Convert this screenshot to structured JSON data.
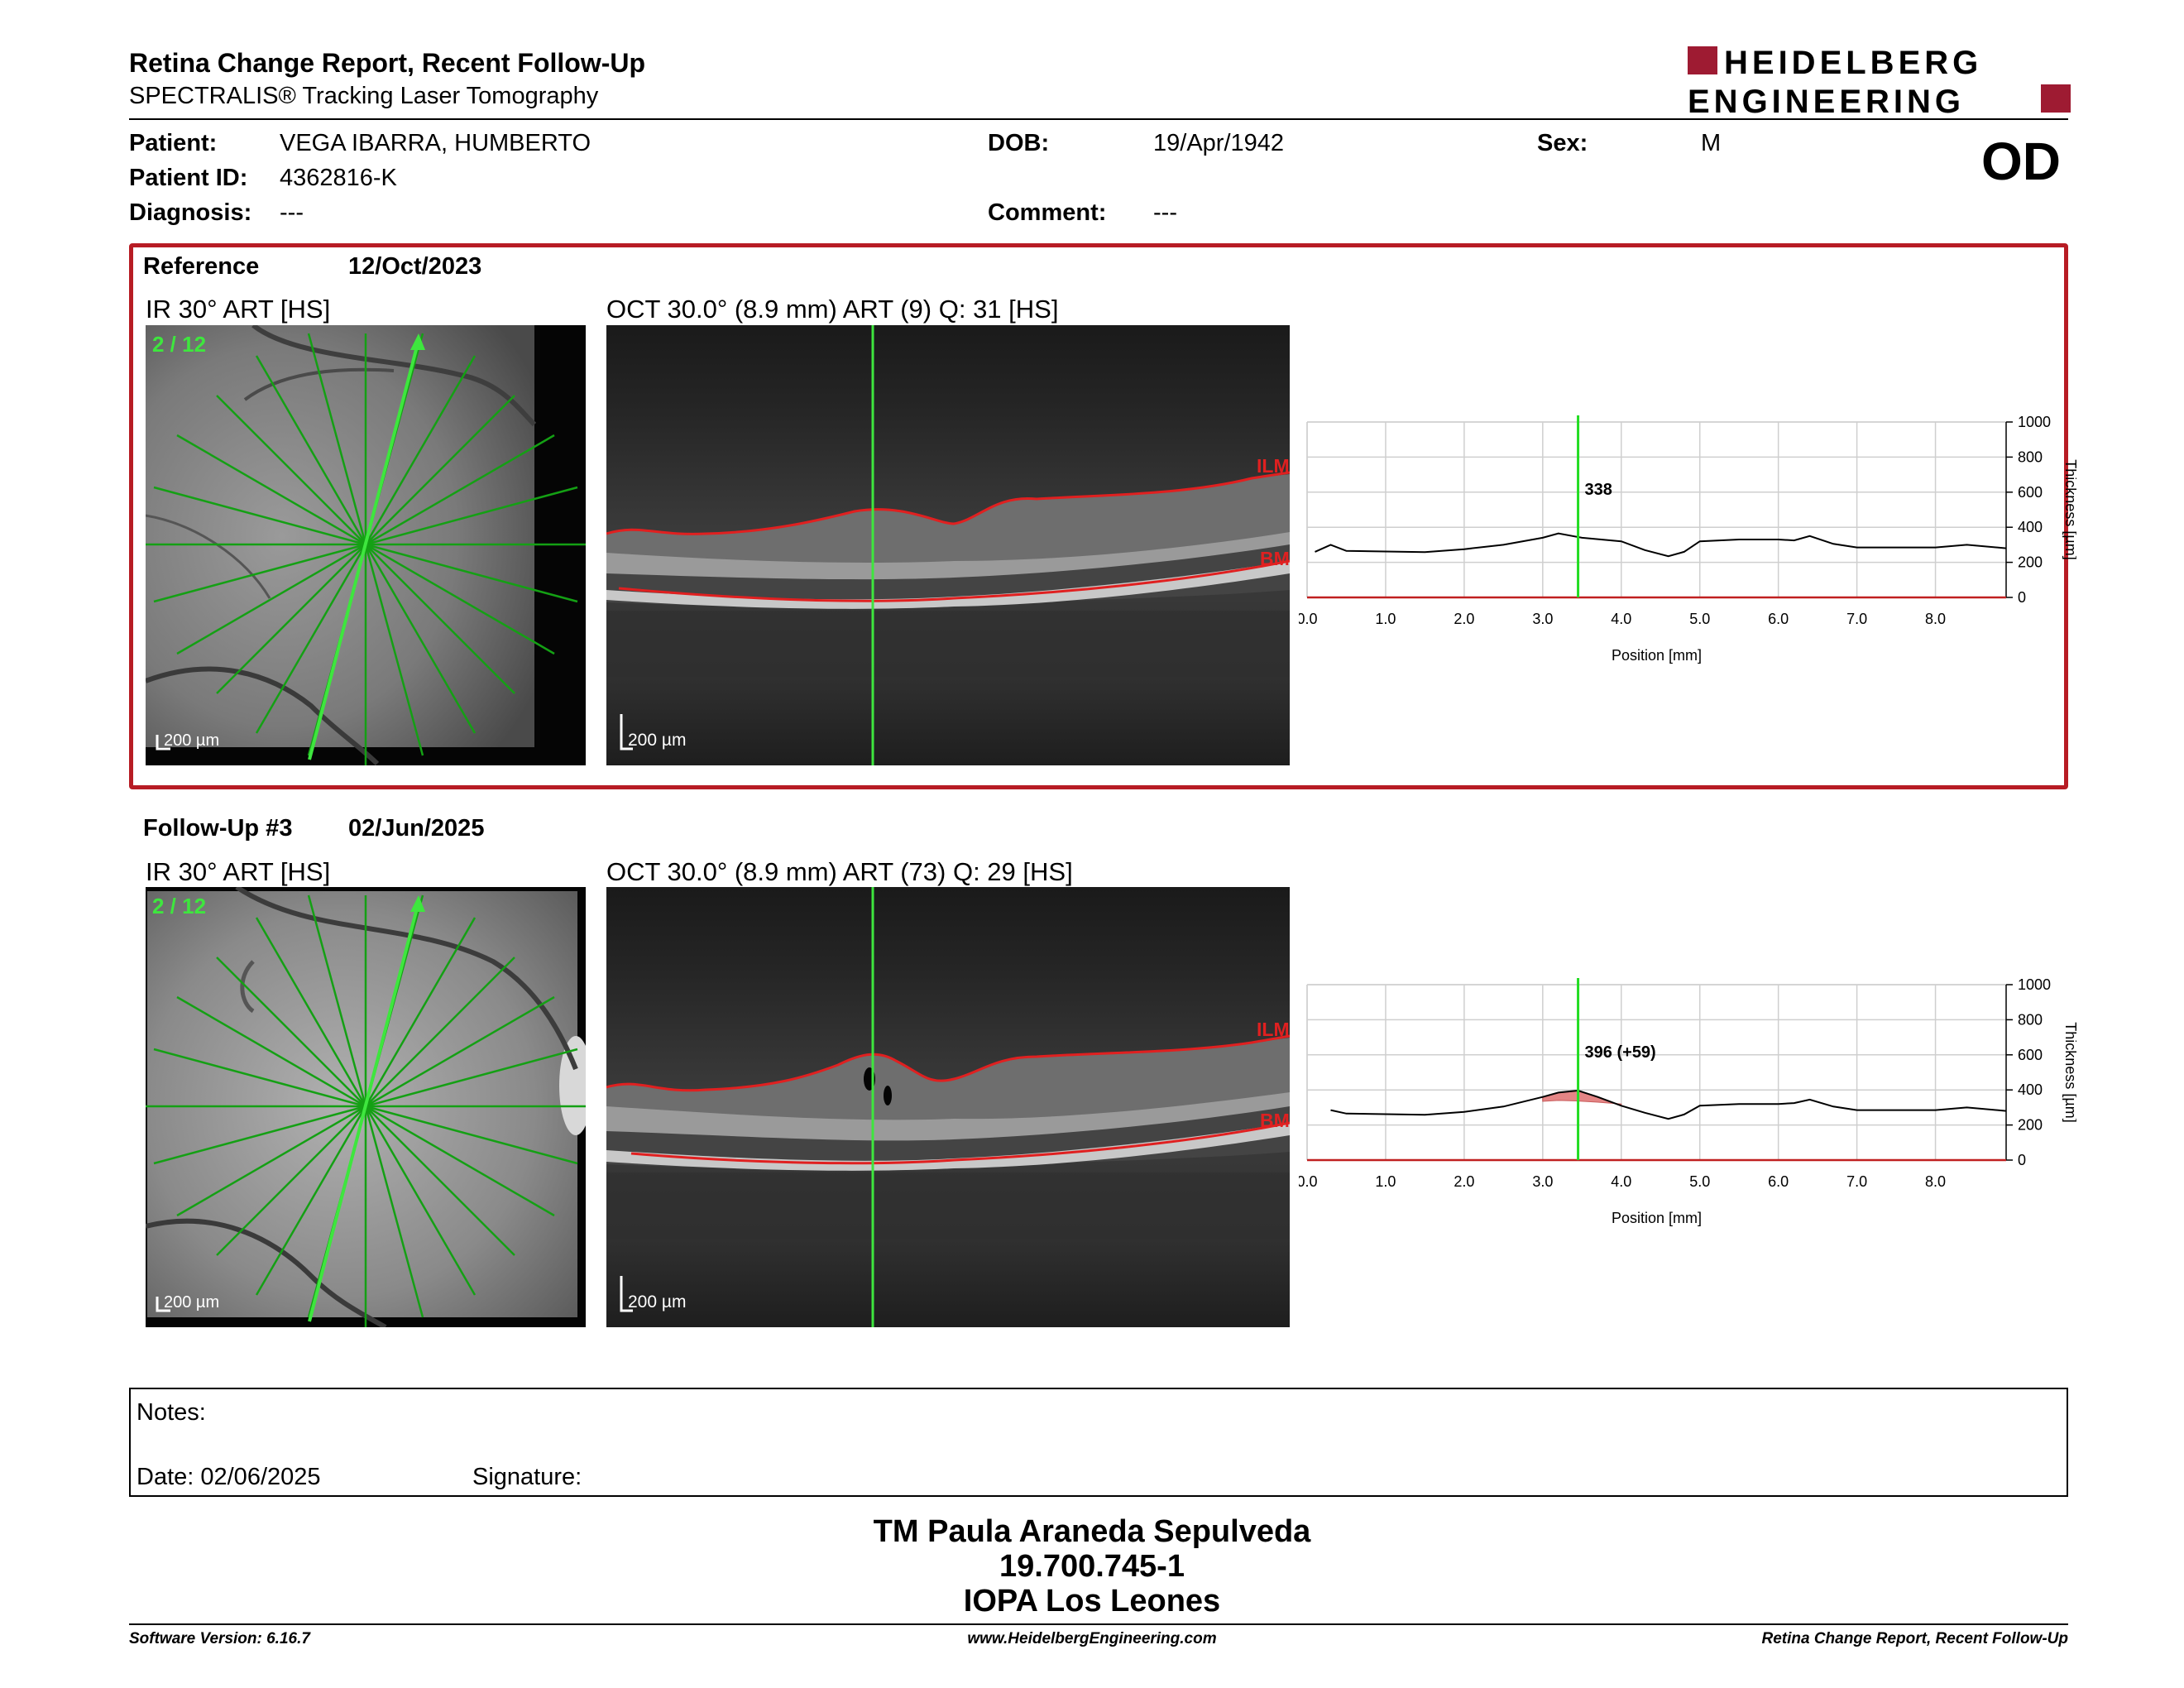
{
  "header": {
    "title": "Retina Change Report, Recent Follow-Up",
    "subtitle": "SPECTRALIS® Tracking Laser Tomography",
    "logo_line1": "HEIDELBERG",
    "logo_line2": "ENGINEERING",
    "brand_color": "#9e1b32"
  },
  "patient": {
    "patient_label": "Patient:",
    "patient_value": "VEGA IBARRA, HUMBERTO",
    "id_label": "Patient ID:",
    "id_value": "4362816-K",
    "diagnosis_label": "Diagnosis:",
    "diagnosis_value": "---",
    "dob_label": "DOB:",
    "dob_value": "19/Apr/1942",
    "comment_label": "Comment:",
    "comment_value": "---",
    "sex_label": "Sex:",
    "sex_value": "M",
    "eye": "OD"
  },
  "reference": {
    "label": "Reference",
    "date": "12/Oct/2023",
    "ir_caption": "IR 30° ART [HS]",
    "oct_caption": "OCT 30.0° (8.9 mm) ART (9) Q: 31 [HS]",
    "scan_index": "2 / 12",
    "scale_ir": "200 µm",
    "scale_oct": "200 µm",
    "ilm": "ILM",
    "bm": "BM",
    "thickness_label": "338"
  },
  "followup": {
    "label": "Follow-Up #3",
    "date": "02/Jun/2025",
    "ir_caption": "IR 30° ART [HS]",
    "oct_caption": "OCT 30.0° (8.9 mm) ART (73) Q: 29 [HS]",
    "scan_index": "2 / 12",
    "scale_ir": "200 µm",
    "scale_oct": "200 µm",
    "ilm": "ILM",
    "bm": "BM",
    "thickness_label": "396 (+59)"
  },
  "chart_data": [
    {
      "type": "line",
      "xlabel": "Position [mm]",
      "ylabel": "Thickness [µm]",
      "xlim": [
        0,
        8.9
      ],
      "ylim": [
        0,
        1000
      ],
      "xticks": [
        "0.0",
        "1.0",
        "2.0",
        "3.0",
        "4.0",
        "5.0",
        "6.0",
        "7.0",
        "8.0"
      ],
      "yticks": [
        "0",
        "200",
        "400",
        "600",
        "800",
        "1000"
      ],
      "marker_x": 3.45,
      "marker_value": 338,
      "grid": true,
      "series": [
        {
          "x": [
            0.1,
            0.3,
            0.5,
            1.0,
            1.5,
            2.0,
            2.5,
            3.0,
            3.2,
            3.5,
            4.0,
            4.3,
            4.6,
            4.8,
            5.0,
            5.5,
            6.0,
            6.2,
            6.4,
            6.7,
            7.0,
            7.5,
            8.0,
            8.4,
            8.9
          ],
          "y": [
            260,
            300,
            265,
            262,
            258,
            275,
            300,
            340,
            365,
            340,
            320,
            270,
            235,
            260,
            320,
            330,
            330,
            325,
            350,
            305,
            285,
            285,
            285,
            300,
            280
          ]
        }
      ]
    },
    {
      "type": "line",
      "xlabel": "Position [mm]",
      "ylabel": "Thickness [µm]",
      "xlim": [
        0,
        8.9
      ],
      "ylim": [
        0,
        1000
      ],
      "xticks": [
        "0.0",
        "1.0",
        "2.0",
        "3.0",
        "4.0",
        "5.0",
        "6.0",
        "7.0",
        "8.0"
      ],
      "yticks": [
        "0",
        "200",
        "400",
        "600",
        "800",
        "1000"
      ],
      "marker_x": 3.45,
      "marker_value": 396,
      "marker_change": 59,
      "grid": true,
      "series": [
        {
          "x": [
            0.3,
            0.5,
            1.0,
            1.5,
            2.0,
            2.5,
            3.0,
            3.2,
            3.45,
            3.7,
            4.0,
            4.3,
            4.6,
            4.8,
            5.0,
            5.5,
            6.0,
            6.2,
            6.4,
            6.7,
            7.0,
            7.5,
            8.0,
            8.4,
            8.9
          ],
          "y": [
            285,
            265,
            262,
            258,
            275,
            305,
            360,
            385,
            396,
            360,
            310,
            270,
            235,
            260,
            310,
            320,
            320,
            325,
            345,
            305,
            285,
            285,
            285,
            300,
            280
          ]
        },
        {
          "x": [
            3.0,
            3.2,
            3.45,
            3.7,
            4.0
          ],
          "y": [
            335,
            340,
            337,
            330,
            320
          ]
        }
      ]
    }
  ],
  "notes": {
    "label": "Notes:",
    "date": "Date: 02/06/2025",
    "signature": "Signature:"
  },
  "signature_block": {
    "name": "TM Paula Araneda Sepulveda",
    "id": "19.700.745-1",
    "org": "IOPA Los Leones"
  },
  "footer": {
    "left": "Software Version: 6.16.7",
    "center": "www.HeidelbergEngineering.com",
    "right": "Retina Change Report, Recent Follow-Up"
  }
}
